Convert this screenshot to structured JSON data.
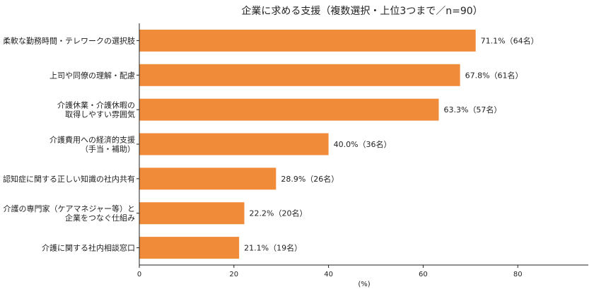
{
  "chart_data": {
    "type": "bar",
    "orientation": "horizontal",
    "title": "企業に求める支援（複数選択・上位3つまで／n=90）",
    "xlabel": "(%)",
    "ylabel": "",
    "xlim": [
      0,
      95
    ],
    "xticks": [
      0,
      20,
      40,
      60,
      80
    ],
    "grid": false,
    "bar_color": "#F08B3A",
    "categories": [
      [
        "柔軟な勤務時間・テレワークの選択肢"
      ],
      [
        "上司や同僚の理解・配慮"
      ],
      [
        "介護休業・介護休暇の",
        "取得しやすい雰囲気"
      ],
      [
        "介護費用への経済的支援",
        "（手当・補助）"
      ],
      [
        "認知症に関する正しい知識の社内共有"
      ],
      [
        "介護の専門家（ケアマネジャー等）と",
        "企業をつなぐ仕組み"
      ],
      [
        "介護に関する社内相談窓口"
      ]
    ],
    "values": [
      71.1,
      67.8,
      63.3,
      40.0,
      28.9,
      22.2,
      21.1
    ],
    "data_labels": [
      "71.1%（64名）",
      "67.8%（61名）",
      "63.3%（57名）",
      "40.0%（36名）",
      "28.9%（26名）",
      "22.2%（20名）",
      "21.1%（19名）"
    ]
  }
}
